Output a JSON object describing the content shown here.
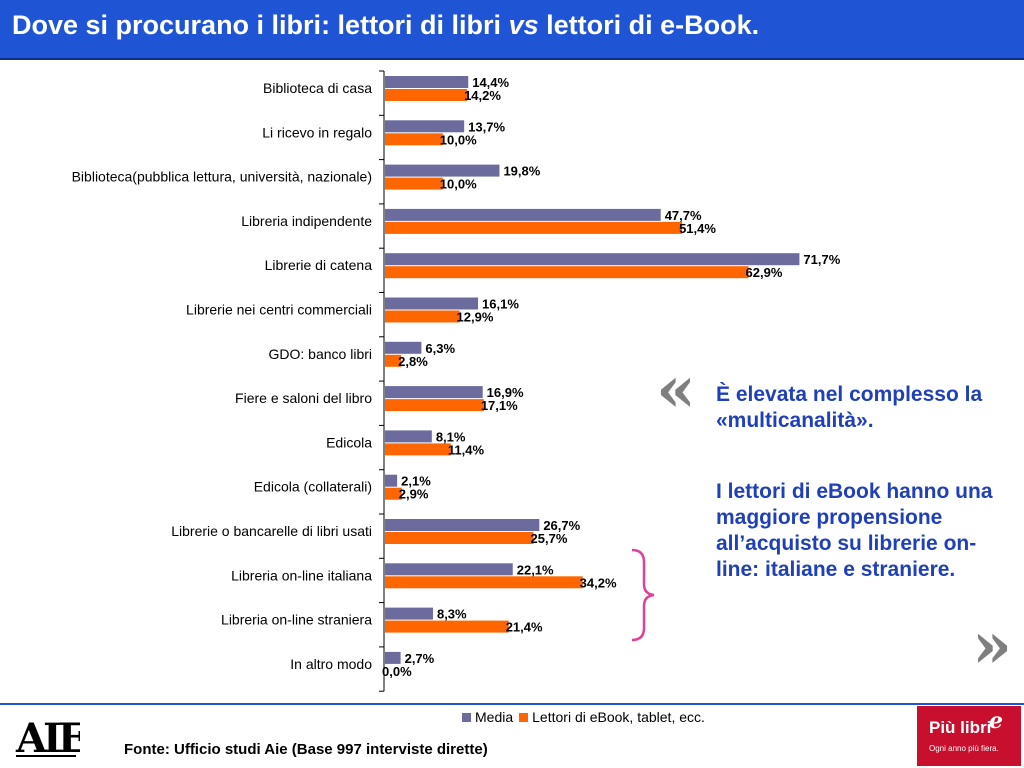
{
  "title": {
    "prefix": "Dove si procurano i libri: lettori di libri ",
    "italic": "vs",
    "suffix": " lettori di e-Book."
  },
  "colors": {
    "title_bar": "#1f55d4",
    "series_media": "#6b6b9e",
    "series_ebook": "#ff6600",
    "note_text": "#1f40b8",
    "brace": "#e0409a",
    "quote_marks": "#7f7f7f"
  },
  "chart_data": {
    "type": "bar",
    "orientation": "horizontal",
    "categories": [
      "Biblioteca di casa",
      "Li ricevo in regalo",
      "Biblioteca(pubblica lettura, università, nazionale)",
      "Libreria indipendente",
      "Librerie di catena",
      "Librerie nei centri commerciali",
      "GDO: banco libri",
      "Fiere e saloni del libro",
      "Edicola",
      "Edicola (collaterali)",
      "Librerie o bancarelle di libri usati",
      "Libreria on-line italiana",
      "Libreria on-line straniera",
      "In altro modo"
    ],
    "series": [
      {
        "name": "Media",
        "values": [
          14.4,
          13.7,
          19.8,
          47.7,
          71.7,
          16.1,
          6.3,
          16.9,
          8.1,
          2.1,
          26.7,
          22.1,
          8.3,
          2.7
        ],
        "labels": [
          "14,4%",
          "13,7%",
          "19,8%",
          "47,7%",
          "71,7%",
          "16,1%",
          "6,3%",
          "16,9%",
          "8,1%",
          "2,1%",
          "26,7%",
          "22,1%",
          "8,3%",
          "2,7%"
        ]
      },
      {
        "name": "Lettori di eBook, tablet, ecc.",
        "values": [
          14.2,
          10.0,
          10.0,
          51.4,
          62.9,
          12.9,
          2.8,
          17.1,
          11.4,
          2.9,
          25.7,
          34.2,
          21.4,
          0.0
        ],
        "labels": [
          "14,2%",
          "10,0%",
          "10,0%",
          "51,4%",
          "62,9%",
          "12,9%",
          "2,8%",
          "17,1%",
          "11,4%",
          "2,9%",
          "25,7%",
          "34,2%",
          "21,4%",
          "0,0%"
        ]
      }
    ],
    "legend_position": "bottom",
    "grid": false
  },
  "callout": {
    "open_quote": "«",
    "close_quote": "»",
    "text_1": "È elevata nel complesso la «multicanalità».",
    "text_2": "I lettori di eBook hanno una maggiore propensione all’acquisto su librerie on-line: italiane e straniere."
  },
  "footer": {
    "logo_text": "AIE",
    "source": "Fonte: Ufficio studi Aie (Base 997 interviste dirette)",
    "brand": {
      "name": "Più libri",
      "mark": "e",
      "tagline": "Ogni anno più fiera."
    }
  }
}
